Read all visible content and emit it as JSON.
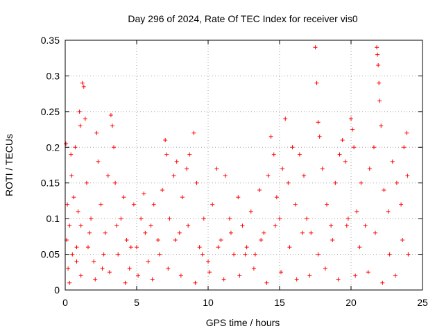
{
  "chart_data": {
    "type": "scatter",
    "title": "Day 296 of 2024, Rate Of TEC Index for receiver vis0",
    "xlabel": "GPS time / hours",
    "ylabel": "ROTI / TECUs",
    "xlim": [
      0,
      25
    ],
    "ylim": [
      0,
      0.35
    ],
    "xticks": [
      0,
      5,
      10,
      15,
      20,
      25
    ],
    "yticks": [
      0,
      0.05,
      0.1,
      0.15,
      0.2,
      0.25,
      0.3,
      0.35
    ],
    "xtick_labels": [
      "0",
      "5",
      "10",
      "15",
      "20",
      "25"
    ],
    "ytick_labels": [
      "0",
      "0.05",
      "0.1",
      "0.15",
      "0.2",
      "0.25",
      "0.3",
      "0.35"
    ],
    "grid": true,
    "legend": "none",
    "marker": "plus",
    "color": "#ff0000",
    "series": [
      {
        "values": [
          [
            0.05,
            0.205
          ],
          [
            0.1,
            0.07
          ],
          [
            0.15,
            0.12
          ],
          [
            0.2,
            0.03
          ],
          [
            0.3,
            0.09
          ],
          [
            0.4,
            0.19
          ],
          [
            0.45,
            0.16
          ],
          [
            0.5,
            0.05
          ],
          [
            0.6,
            0.13
          ],
          [
            0.7,
            0.2
          ],
          [
            0.8,
            0.04
          ],
          [
            0.9,
            0.11
          ],
          [
            1.0,
            0.25
          ],
          [
            1.05,
            0.23
          ],
          [
            1.1,
            0.09
          ],
          [
            1.2,
            0.29
          ],
          [
            1.3,
            0.285
          ],
          [
            1.4,
            0.24
          ],
          [
            1.5,
            0.15
          ],
          [
            1.6,
            0.06
          ],
          [
            1.8,
            0.1
          ],
          [
            2.0,
            0.04
          ],
          [
            2.2,
            0.22
          ],
          [
            2.3,
            0.18
          ],
          [
            2.5,
            0.12
          ],
          [
            2.6,
            0.03
          ],
          [
            2.8,
            0.08
          ],
          [
            3.0,
            0.16
          ],
          [
            3.2,
            0.245
          ],
          [
            3.3,
            0.23
          ],
          [
            3.4,
            0.2
          ],
          [
            3.5,
            0.15
          ],
          [
            3.7,
            0.05
          ],
          [
            3.9,
            0.1
          ],
          [
            4.1,
            0.13
          ],
          [
            4.3,
            0.07
          ],
          [
            4.5,
            0.03
          ],
          [
            4.8,
            0.12
          ],
          [
            5.0,
            0.06
          ],
          [
            5.3,
            0.1
          ],
          [
            5.5,
            0.135
          ],
          [
            5.8,
            0.04
          ],
          [
            6.0,
            0.09
          ],
          [
            6.2,
            0.12
          ],
          [
            6.5,
            0.07
          ],
          [
            6.8,
            0.14
          ],
          [
            7.0,
            0.21
          ],
          [
            7.1,
            0.19
          ],
          [
            7.3,
            0.1
          ],
          [
            7.6,
            0.16
          ],
          [
            7.8,
            0.18
          ],
          [
            8.0,
            0.08
          ],
          [
            8.2,
            0.13
          ],
          [
            8.5,
            0.17
          ],
          [
            8.7,
            0.19
          ],
          [
            9.0,
            0.22
          ],
          [
            9.2,
            0.15
          ],
          [
            9.4,
            0.06
          ],
          [
            9.7,
            0.1
          ],
          [
            10.0,
            0.04
          ],
          [
            10.3,
            0.12
          ],
          [
            10.6,
            0.17
          ],
          [
            10.9,
            0.07
          ],
          [
            11.2,
            0.16
          ],
          [
            11.5,
            0.1
          ],
          [
            11.8,
            0.05
          ],
          [
            12.1,
            0.13
          ],
          [
            12.4,
            0.09
          ],
          [
            12.7,
            0.06
          ],
          [
            13.0,
            0.11
          ],
          [
            13.3,
            0.05
          ],
          [
            13.6,
            0.14
          ],
          [
            13.9,
            0.08
          ],
          [
            14.2,
            0.16
          ],
          [
            14.4,
            0.215
          ],
          [
            14.6,
            0.19
          ],
          [
            14.8,
            0.13
          ],
          [
            15.0,
            0.1
          ],
          [
            15.2,
            0.17
          ],
          [
            15.4,
            0.24
          ],
          [
            15.6,
            0.15
          ],
          [
            15.9,
            0.2
          ],
          [
            16.1,
            0.12
          ],
          [
            16.4,
            0.19
          ],
          [
            16.7,
            0.16
          ],
          [
            16.9,
            0.1
          ],
          [
            17.2,
            0.08
          ],
          [
            17.5,
            0.34
          ],
          [
            17.6,
            0.29
          ],
          [
            17.7,
            0.235
          ],
          [
            17.8,
            0.215
          ],
          [
            18.0,
            0.17
          ],
          [
            18.3,
            0.12
          ],
          [
            18.6,
            0.09
          ],
          [
            18.9,
            0.15
          ],
          [
            19.2,
            0.19
          ],
          [
            19.4,
            0.21
          ],
          [
            19.6,
            0.18
          ],
          [
            19.8,
            0.1
          ],
          [
            20.0,
            0.24
          ],
          [
            20.1,
            0.225
          ],
          [
            20.2,
            0.2
          ],
          [
            20.4,
            0.11
          ],
          [
            20.7,
            0.15
          ],
          [
            21.0,
            0.09
          ],
          [
            21.3,
            0.17
          ],
          [
            21.6,
            0.2
          ],
          [
            21.8,
            0.34
          ],
          [
            21.85,
            0.33
          ],
          [
            21.9,
            0.315
          ],
          [
            21.95,
            0.29
          ],
          [
            22.0,
            0.265
          ],
          [
            22.1,
            0.23
          ],
          [
            22.3,
            0.14
          ],
          [
            22.6,
            0.11
          ],
          [
            22.9,
            0.18
          ],
          [
            23.2,
            0.15
          ],
          [
            23.5,
            0.12
          ],
          [
            23.7,
            0.2
          ],
          [
            23.9,
            0.22
          ],
          [
            23.95,
            0.16
          ],
          [
            24.0,
            0.05
          ],
          [
            0.3,
            0.01
          ],
          [
            1.1,
            0.02
          ],
          [
            2.1,
            0.015
          ],
          [
            3.1,
            0.025
          ],
          [
            4.2,
            0.01
          ],
          [
            5.1,
            0.02
          ],
          [
            6.1,
            0.015
          ],
          [
            7.2,
            0.03
          ],
          [
            8.1,
            0.02
          ],
          [
            9.1,
            0.01
          ],
          [
            10.1,
            0.025
          ],
          [
            11.1,
            0.015
          ],
          [
            12.2,
            0.02
          ],
          [
            13.2,
            0.03
          ],
          [
            14.1,
            0.01
          ],
          [
            15.1,
            0.025
          ],
          [
            16.2,
            0.015
          ],
          [
            17.1,
            0.02
          ],
          [
            18.2,
            0.03
          ],
          [
            19.1,
            0.015
          ],
          [
            20.3,
            0.02
          ],
          [
            21.2,
            0.025
          ],
          [
            22.2,
            0.01
          ],
          [
            23.1,
            0.02
          ],
          [
            0.8,
            0.06
          ],
          [
            1.7,
            0.08
          ],
          [
            2.7,
            0.05
          ],
          [
            3.6,
            0.09
          ],
          [
            4.6,
            0.06
          ],
          [
            5.6,
            0.08
          ],
          [
            6.6,
            0.05
          ],
          [
            7.7,
            0.07
          ],
          [
            8.6,
            0.09
          ],
          [
            9.6,
            0.05
          ],
          [
            10.7,
            0.06
          ],
          [
            11.6,
            0.08
          ],
          [
            12.6,
            0.05
          ],
          [
            13.7,
            0.07
          ],
          [
            14.7,
            0.09
          ],
          [
            15.7,
            0.06
          ],
          [
            16.6,
            0.08
          ],
          [
            17.7,
            0.05
          ],
          [
            18.7,
            0.07
          ],
          [
            19.7,
            0.09
          ],
          [
            20.6,
            0.06
          ],
          [
            21.7,
            0.08
          ],
          [
            22.7,
            0.05
          ],
          [
            23.6,
            0.07
          ]
        ]
      }
    ]
  }
}
